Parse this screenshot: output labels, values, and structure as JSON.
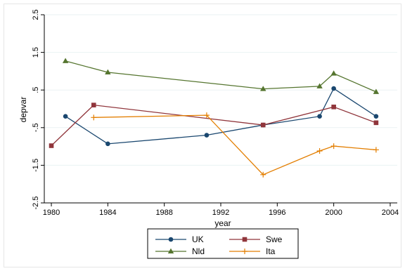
{
  "chart_data": {
    "type": "line",
    "xlabel": "year",
    "ylabel": "depvar",
    "xlim": [
      1979.5,
      2004.5
    ],
    "ylim": [
      -2.5,
      2.5
    ],
    "x_ticks": [
      1980,
      1984,
      1988,
      1992,
      1996,
      2000,
      2004
    ],
    "y_ticks": [
      -2.5,
      -1.5,
      -0.5,
      0.5,
      1.5,
      2.5
    ],
    "y_tick_labels": [
      "-2.5",
      "-1.5",
      "-.5",
      ".5",
      "1.5",
      "2.5"
    ],
    "grid": "horizontal",
    "legend_position": "bottom",
    "series": [
      {
        "name": "UK",
        "color": "#1a476f",
        "marker": "circle",
        "x": [
          1981,
          1984,
          1991,
          1995,
          1999,
          2000,
          2003
        ],
        "y": [
          -0.2,
          -0.93,
          -0.7,
          -0.43,
          -0.2,
          0.54,
          -0.2
        ]
      },
      {
        "name": "Swe",
        "color": "#90353b",
        "marker": "square",
        "x": [
          1980,
          1983,
          1995,
          2000,
          2003
        ],
        "y": [
          -0.98,
          0.1,
          -0.43,
          0.05,
          -0.37
        ]
      },
      {
        "name": "Nld",
        "color": "#55752f",
        "marker": "triangle",
        "x": [
          1981,
          1984,
          1995,
          1999,
          2000,
          2003
        ],
        "y": [
          1.27,
          0.97,
          0.53,
          0.6,
          0.94,
          0.45
        ]
      },
      {
        "name": "Ita",
        "color": "#e37e00",
        "marker": "plus",
        "x": [
          1983,
          1991,
          1995,
          1999,
          2000,
          2003
        ],
        "y": [
          -0.23,
          -0.17,
          -1.75,
          -1.12,
          -0.99,
          -1.09
        ]
      }
    ]
  }
}
